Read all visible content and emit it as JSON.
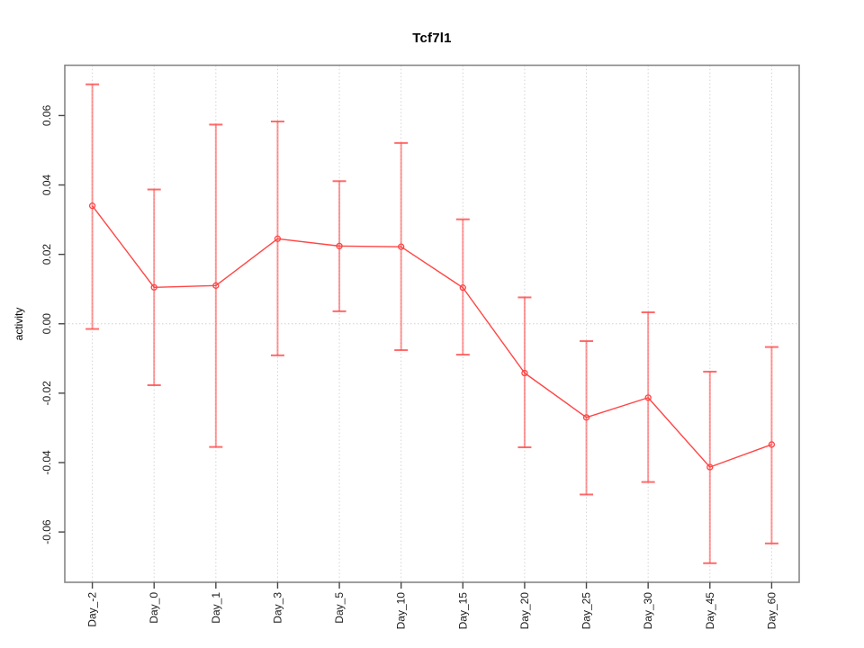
{
  "chart_data": {
    "type": "line",
    "title": "Tcf7l1",
    "xlabel": "",
    "ylabel": "activity",
    "categories": [
      "Day_-2",
      "Day_0",
      "Day_1",
      "Day_3",
      "Day_5",
      "Day_10",
      "Day_15",
      "Day_20",
      "Day_25",
      "Day_30",
      "Day_45",
      "Day_60"
    ],
    "series": [
      {
        "name": "Tcf7l1 activity",
        "values": [
          0.034,
          0.0105,
          0.011,
          0.0245,
          0.0224,
          0.0222,
          0.0104,
          -0.0142,
          -0.027,
          -0.0213,
          -0.0413,
          -0.0348
        ],
        "error_upper": [
          0.069,
          0.0387,
          0.0574,
          0.0583,
          0.0411,
          0.0521,
          0.0301,
          0.0076,
          -0.005,
          0.0033,
          -0.0138,
          -0.0067
        ],
        "error_lower": [
          -0.0015,
          -0.0177,
          -0.0355,
          -0.0091,
          0.0036,
          -0.0076,
          -0.0089,
          -0.0356,
          -0.0492,
          -0.0456,
          -0.069,
          -0.0633
        ]
      }
    ],
    "yticks": [
      -0.06,
      -0.04,
      -0.02,
      0,
      0.02,
      0.04,
      0.06
    ],
    "ytick_labels": [
      "-0.06",
      "-0.04",
      "-0.02",
      "0.00",
      "0.02",
      "0.04",
      "0.06"
    ],
    "ylim": [
      -0.0745,
      0.0745
    ],
    "grid": {
      "vertical_dotted_at_categories": true,
      "horizontal_dotted_at_zero": true
    },
    "legend": "none",
    "marker": "open-circle",
    "colors": {
      "line": "#ff4545",
      "marker": "#ff4545",
      "errorbar": "rgba(255,70,70,0.55)",
      "errorbar_cap": "rgba(255,70,70,0.8)",
      "grid": "#d4d4d4",
      "zero_line": "#cfcfcf",
      "box": "#878787",
      "tick": "#474747",
      "text": "#1a1a1a"
    }
  }
}
